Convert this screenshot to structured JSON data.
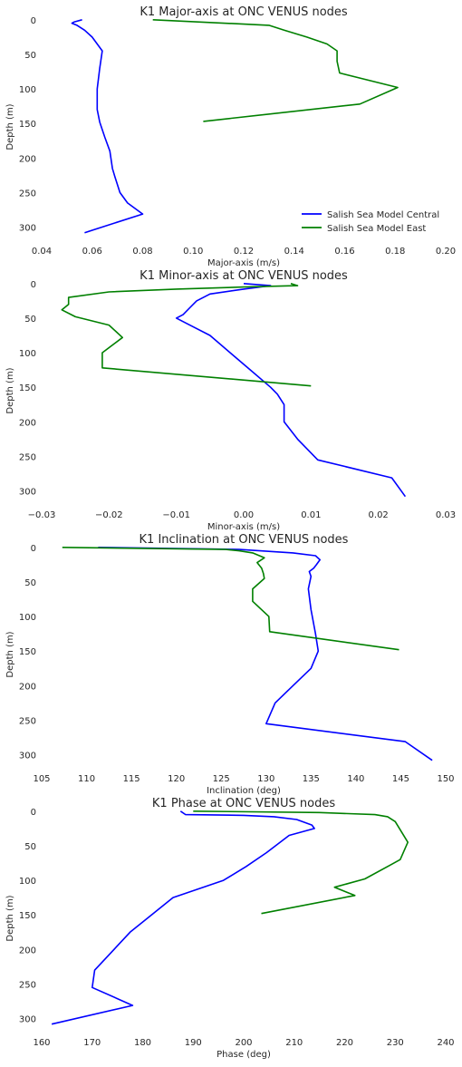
{
  "chart_data": [
    {
      "type": "line",
      "title": "K1 Major-axis at ONC VENUS nodes",
      "xlabel": "Major-axis (m/s)",
      "ylabel": "Depth (m)",
      "xlim": [
        0.04,
        0.2
      ],
      "ylim": [
        315,
        -5
      ],
      "y_inverted": true,
      "xticks": [
        "0.04",
        "0.06",
        "0.08",
        "0.10",
        "0.12",
        "0.14",
        "0.16",
        "0.18",
        "0.20"
      ],
      "yticks": [
        "0",
        "50",
        "100",
        "150",
        "200",
        "250",
        "300"
      ],
      "legend": "lower-right",
      "series": [
        {
          "name": "Salish Sea Model Central",
          "color": "#0000ff",
          "x": [
            0.056,
            0.053,
            0.052,
            0.054,
            0.057,
            0.06,
            0.064,
            0.063,
            0.062,
            0.062,
            0.063,
            0.065,
            0.067,
            0.068,
            0.069,
            0.071,
            0.074,
            0.08,
            0.057
          ],
          "y": [
            0,
            3,
            5,
            8,
            15,
            25,
            45,
            70,
            100,
            130,
            148,
            170,
            190,
            215,
            227,
            250,
            265,
            281,
            308
          ]
        },
        {
          "name": "Salish Sea Model East",
          "color": "#008000",
          "x": [
            0.084,
            0.13,
            0.136,
            0.145,
            0.153,
            0.157,
            0.157,
            0.158,
            0.181,
            0.166,
            0.104
          ],
          "y": [
            0,
            8,
            15,
            25,
            35,
            45,
            60,
            77,
            98,
            122,
            147
          ]
        }
      ]
    },
    {
      "type": "line",
      "title": "K1 Minor-axis at ONC VENUS nodes",
      "xlabel": "Minor-axis (m/s)",
      "ylabel": "Depth (m)",
      "xlim": [
        -0.03,
        0.03
      ],
      "ylim": [
        315,
        -5
      ],
      "y_inverted": true,
      "xticks": [
        "−0.03",
        "−0.02",
        "−0.01",
        "0.00",
        "0.01",
        "0.02",
        "0.03"
      ],
      "yticks": [
        "0",
        "50",
        "100",
        "150",
        "200",
        "250",
        "300"
      ],
      "series": [
        {
          "name": "Salish Sea Model Central",
          "color": "#0000ff",
          "x": [
            0.0,
            0.004,
            0.0,
            -0.005,
            -0.007,
            -0.008,
            -0.009,
            -0.01,
            -0.008,
            -0.005,
            -0.002,
            0.001,
            0.004,
            0.005,
            0.006,
            0.006,
            0.008,
            0.011,
            0.022,
            0.024
          ],
          "y": [
            0,
            3,
            8,
            15,
            25,
            35,
            45,
            50,
            60,
            75,
            100,
            125,
            150,
            160,
            175,
            200,
            225,
            255,
            281,
            308
          ]
        },
        {
          "name": "Salish Sea Model East",
          "color": "#008000",
          "x": [
            0.007,
            0.008,
            0.0,
            -0.01,
            -0.02,
            -0.026,
            -0.026,
            -0.027,
            -0.025,
            -0.02,
            -0.018,
            -0.021,
            -0.021,
            0.01
          ],
          "y": [
            0,
            3,
            5,
            8,
            12,
            20,
            30,
            38,
            48,
            60,
            78,
            100,
            122,
            148
          ]
        }
      ]
    },
    {
      "type": "line",
      "title": "K1 Inclination at ONC VENUS nodes",
      "xlabel": "Inclination (deg)",
      "ylabel": "Depth (m)",
      "xlim": [
        105,
        150
      ],
      "ylim": [
        315,
        -5
      ],
      "y_inverted": true,
      "xticks": [
        "105",
        "110",
        "115",
        "120",
        "125",
        "130",
        "135",
        "140",
        "145",
        "150"
      ],
      "yticks": [
        "0",
        "50",
        "100",
        "150",
        "200",
        "250",
        "300"
      ],
      "series": [
        {
          "name": "Salish Sea Model Central",
          "color": "#0000ff",
          "x": [
            111.3,
            127.0,
            133.0,
            135.5,
            136.0,
            135.6,
            135.3,
            134.8,
            135.0,
            134.7,
            135.0,
            135.5,
            135.8,
            135.0,
            133.0,
            131.0,
            130.0,
            145.5,
            148.5
          ],
          "y": [
            0,
            3,
            8,
            12,
            18,
            25,
            30,
            35,
            42,
            60,
            90,
            125,
            150,
            175,
            200,
            225,
            255,
            281,
            308
          ]
        },
        {
          "name": "Salish Sea Model East",
          "color": "#008000",
          "x": [
            107.3,
            125.5,
            127.0,
            128.5,
            129.8,
            129.0,
            129.5,
            129.7,
            129.8,
            128.5,
            128.5,
            130.3,
            130.4,
            144.8
          ],
          "y": [
            0,
            3,
            5,
            8,
            15,
            22,
            30,
            38,
            45,
            60,
            78,
            100,
            122,
            148
          ]
        }
      ]
    },
    {
      "type": "line",
      "title": "K1 Phase at ONC VENUS nodes",
      "xlabel": "Phase (deg)",
      "ylabel": "Depth (m)",
      "xlim": [
        160,
        240
      ],
      "ylim": [
        315,
        -5
      ],
      "y_inverted": true,
      "xticks": [
        "160",
        "170",
        "180",
        "190",
        "200",
        "210",
        "220",
        "230",
        "240"
      ],
      "yticks": [
        "0",
        "50",
        "100",
        "150",
        "200",
        "250",
        "300"
      ],
      "series": [
        {
          "name": "Salish Sea Model Central",
          "color": "#0000ff",
          "x": [
            187.5,
            188.5,
            200.0,
            206.0,
            210.5,
            213.5,
            214.0,
            209.0,
            204.5,
            200.5,
            196.0,
            186.0,
            177.5,
            170.5,
            170.0,
            178.0,
            162.0
          ],
          "y": [
            0,
            5,
            6,
            8,
            12,
            20,
            25,
            35,
            60,
            80,
            100,
            125,
            175,
            230,
            255,
            281,
            308
          ]
        },
        {
          "name": "Salish Sea Model East",
          "color": "#008000",
          "x": [
            190.0,
            215.0,
            226.0,
            228.5,
            230.0,
            232.5,
            231.0,
            229.0,
            224.0,
            218.0,
            222.0,
            203.5
          ],
          "y": [
            0,
            2,
            5,
            8,
            15,
            45,
            70,
            78,
            98,
            110,
            122,
            148
          ]
        }
      ]
    }
  ]
}
